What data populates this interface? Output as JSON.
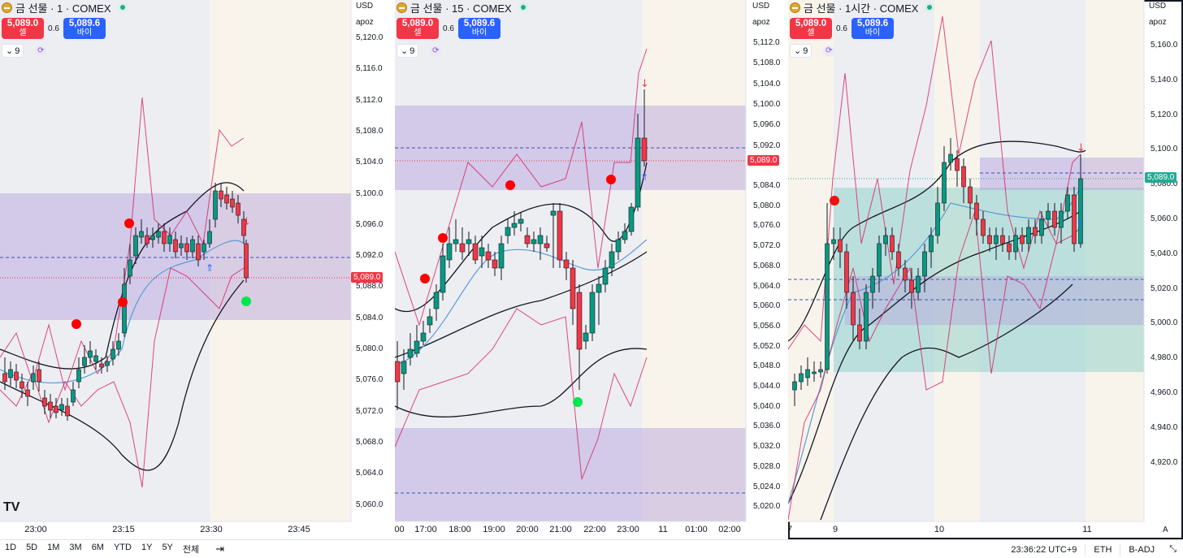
{
  "panes": [
    {
      "title": "금 선물 · 1 · COMEX",
      "sell_price": "5,089.0",
      "sell_label": "셀",
      "buy_price": "5,089.6",
      "buy_label": "바이",
      "spread": "0.6",
      "indicator_count": "9",
      "currency": "USD",
      "axis_author": "apoz",
      "current_price": "5,089.0",
      "y_ticks": [
        "5,120.0",
        "5,116.0",
        "5,112.0",
        "5,108.0",
        "5,104.0",
        "5,100.0",
        "5,096.0",
        "5,092.0",
        "5,088.0",
        "5,084.0",
        "5,080.0",
        "5,076.0",
        "5,072.0",
        "5,068.0",
        "5,064.0",
        "5,060.0"
      ],
      "x_ticks": [
        "23:00",
        "23:15",
        "23:30",
        "23:45"
      ]
    },
    {
      "title": "금 선물 · 15 · COMEX",
      "sell_price": "5,089.0",
      "sell_label": "셀",
      "buy_price": "5,089.6",
      "buy_label": "바이",
      "spread": "0.6",
      "indicator_count": "9",
      "currency": "USD",
      "axis_author": "apoz",
      "current_price": "5,089.0",
      "y_ticks": [
        "5,112.0",
        "5,108.0",
        "5,104.0",
        "5,100.0",
        "5,096.0",
        "5,092.0",
        "5,084.0",
        "5,080.0",
        "5,076.0",
        "5,072.0",
        "5,068.0",
        "5,064.0",
        "5,060.0",
        "5,056.0",
        "5,052.0",
        "5,048.0",
        "5,044.0",
        "5,040.0",
        "5,036.0",
        "5,032.0",
        "5,028.0",
        "5,024.0",
        "5,020.0"
      ],
      "x_ticks": [
        ":00",
        "17:00",
        "18:00",
        "19:00",
        "20:00",
        "21:00",
        "22:00",
        "23:00",
        "11",
        "01:00",
        "02:00"
      ]
    },
    {
      "title": "금 선물 · 1시간 · COMEX",
      "sell_price": "5,089.0",
      "sell_label": "셀",
      "buy_price": "5,089.6",
      "buy_label": "바이",
      "spread": "0.6",
      "indicator_count": "9",
      "currency": "USD",
      "axis_author": "apoz",
      "current_price": "5,089.0",
      "y_ticks": [
        "5,160.0",
        "5,140.0",
        "5,120.0",
        "5,100.0",
        "5,080.0",
        "5,060.0",
        "5,040.0",
        "5,020.0",
        "5,000.0",
        "4,980.0",
        "4,960.0",
        "4,940.0",
        "4,920.0"
      ],
      "x_ticks": [
        "7",
        "9",
        "10",
        "11"
      ],
      "corner_label": "A"
    }
  ],
  "bottom_bar": {
    "ranges": [
      "1D",
      "5D",
      "1M",
      "3M",
      "6M",
      "YTD",
      "1Y",
      "5Y",
      "전체"
    ],
    "time": "23:36:22 UTC+9",
    "session": "ETH",
    "adjust": "B-ADJ"
  },
  "colors": {
    "up": "#089981",
    "down": "#f23645",
    "zone": "#b39ddb",
    "zone_green": "#80cbc4",
    "sell": "#f23645",
    "buy": "#2962ff",
    "session_bg": "#eceef2",
    "after_bg": "#f8f4ec"
  },
  "icons": {
    "symbol": "gold-coin-icon",
    "live": "live-status-icon",
    "refresh": "refresh-icon",
    "calendar": "calendar-range-icon",
    "fullscreen": "fullscreen-icon"
  },
  "logo": "TV"
}
